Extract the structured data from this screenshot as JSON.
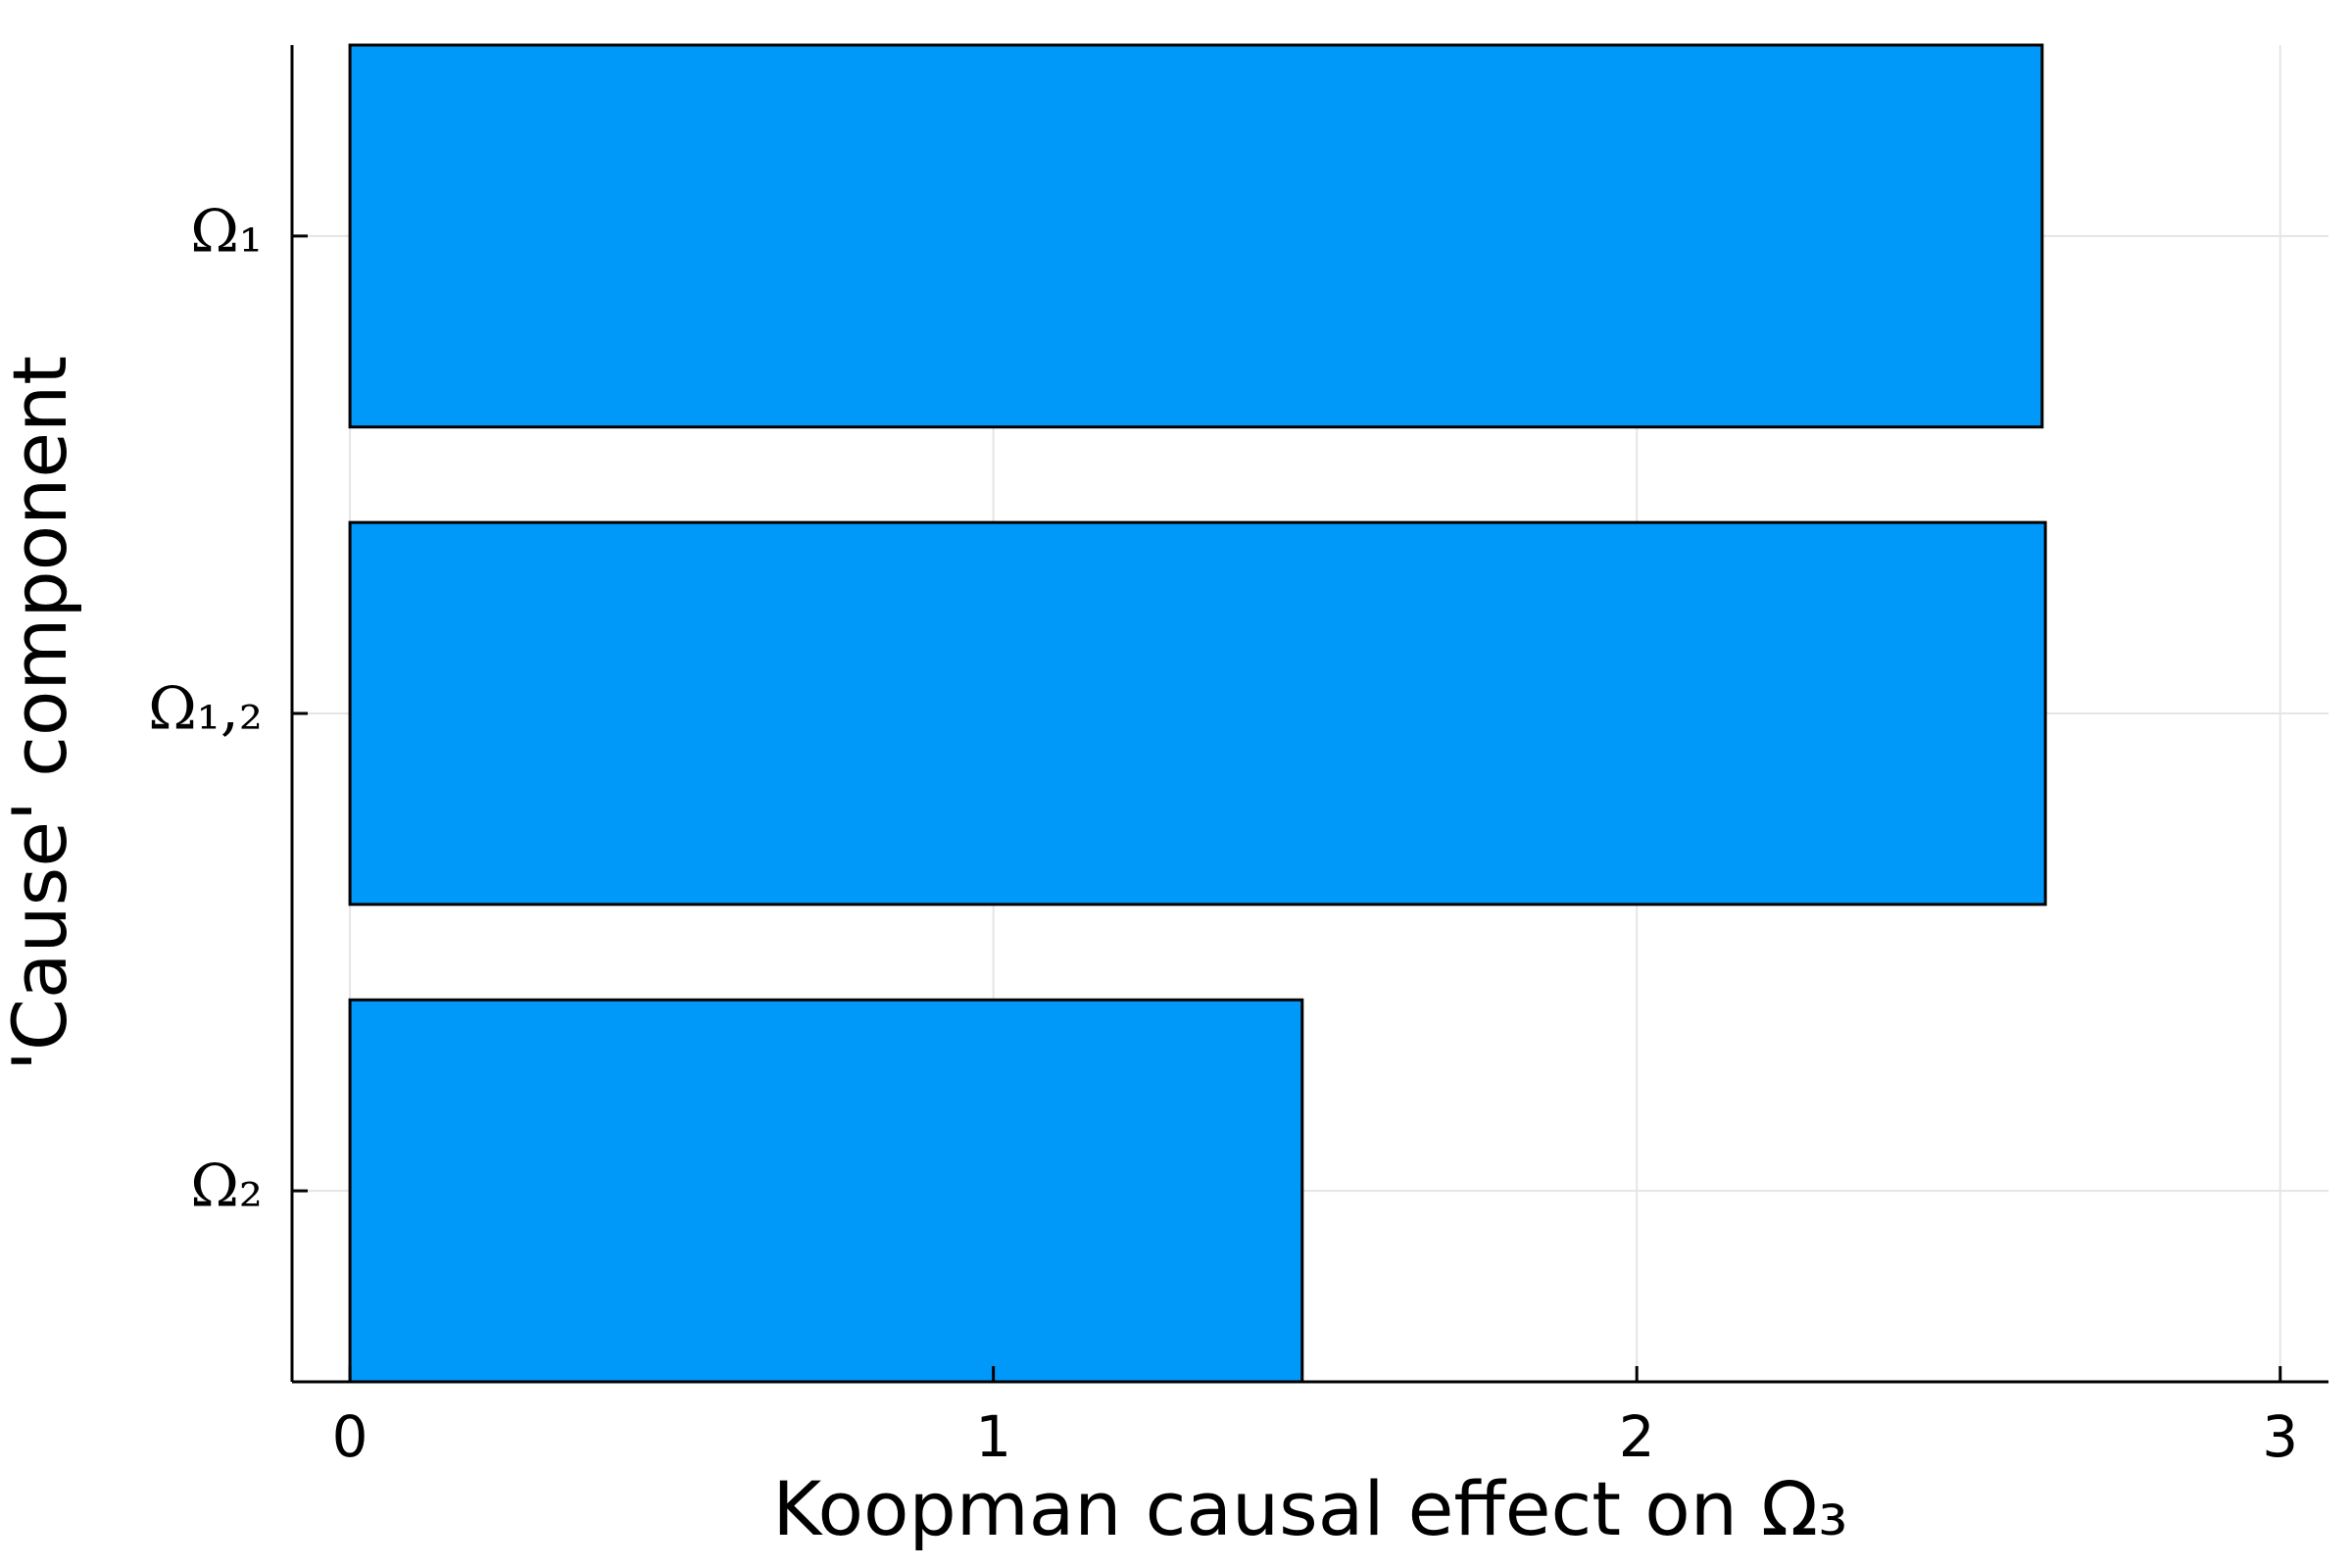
{
  "chart_data": {
    "type": "barh",
    "x_label": "Koopman causal effect on Ω₃",
    "y_label": "'Cause' component",
    "categories": [
      "Ω₁",
      "Ω₁,₂",
      "Ω₂"
    ],
    "values": [
      2.63,
      2.635,
      1.48
    ],
    "color": "#0099fa",
    "xlim": [
      -0.09,
      3.075
    ],
    "xticks": [
      0,
      1,
      2,
      3
    ],
    "grid": true
  }
}
